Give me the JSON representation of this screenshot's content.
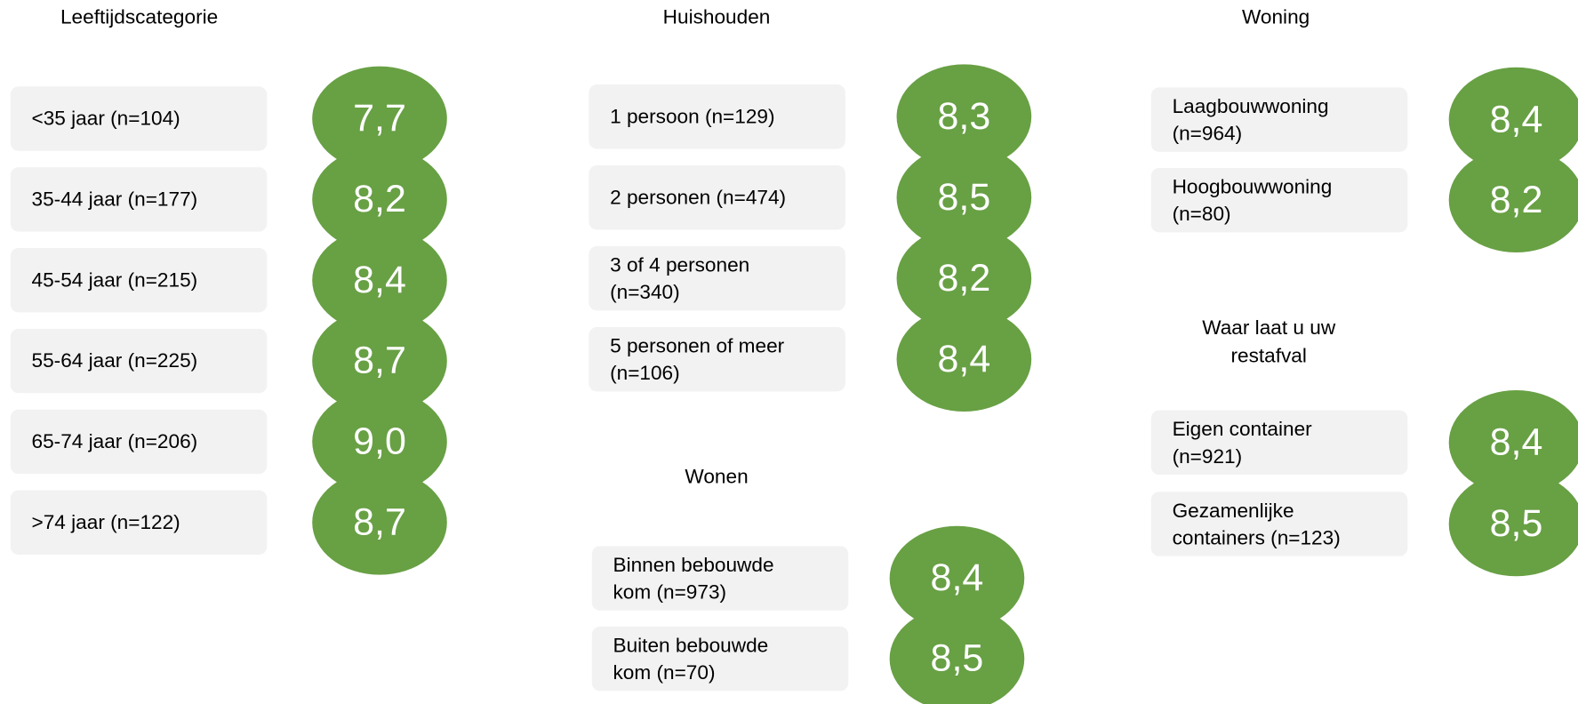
{
  "groups": [
    {
      "title": [
        "Leeftijdscategorie"
      ],
      "items": [
        {
          "label": [
            "<35 jaar (n=104)"
          ],
          "score": "7,7"
        },
        {
          "label": [
            "35-44 jaar (n=177)"
          ],
          "score": "8,2"
        },
        {
          "label": [
            "45-54 jaar (n=215)"
          ],
          "score": "8,4"
        },
        {
          "label": [
            "55-64 jaar (n=225)"
          ],
          "score": "8,7"
        },
        {
          "label": [
            "65-74 jaar (n=206)"
          ],
          "score": "9,0"
        },
        {
          "label": [
            ">74 jaar (n=122)"
          ],
          "score": "8,7"
        }
      ]
    },
    {
      "title": [
        "Huishouden"
      ],
      "items": [
        {
          "label": [
            "1 persoon (n=129)"
          ],
          "score": "8,3"
        },
        {
          "label": [
            "2 personen (n=474)"
          ],
          "score": "8,5"
        },
        {
          "label": [
            "3 of 4 personen",
            "(n=340)"
          ],
          "score": "8,2"
        },
        {
          "label": [
            "5 personen of meer",
            "(n=106)"
          ],
          "score": "8,4"
        }
      ]
    },
    {
      "title": [
        "Wonen"
      ],
      "items": [
        {
          "label": [
            "Binnen bebouwde",
            "kom (n=973)"
          ],
          "score": "8,4"
        },
        {
          "label": [
            "Buiten bebouwde",
            "kom (n=70)"
          ],
          "score": "8,5"
        }
      ]
    },
    {
      "title": [
        "Woning"
      ],
      "items": [
        {
          "label": [
            "Laagbouwwoning",
            "(n=964)"
          ],
          "score": "8,4"
        },
        {
          "label": [
            "Hoogbouwwoning",
            "(n=80)"
          ],
          "score": "8,2"
        }
      ]
    },
    {
      "title": [
        "Waar laat u uw",
        "restafval"
      ],
      "items": [
        {
          "label": [
            "Eigen container",
            "(n=921)"
          ],
          "score": "8,4"
        },
        {
          "label": [
            "Gezamenlijke",
            "containers (n=123)"
          ],
          "score": "8,5"
        }
      ]
    }
  ]
}
